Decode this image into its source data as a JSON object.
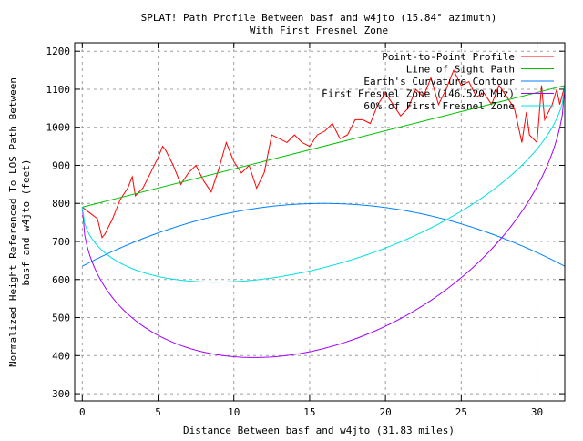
{
  "chart_data": {
    "type": "line",
    "title": "SPLAT! Path Profile Between basf and w4jto (15.84° azimuth)",
    "subtitle": "With First Fresnel Zone",
    "xlabel": "Distance Between basf and w4jto (31.83 miles)",
    "ylabel_line1": "Normalized Height Referenced To LOS Path Between",
    "ylabel_line2": "basf and w4jto (feet)",
    "xlim": [
      -0.5,
      31.83
    ],
    "ylim": [
      281,
      1222
    ],
    "xticks": [
      "0",
      "5",
      "10",
      "15",
      "20",
      "25",
      "30"
    ],
    "xtick_values": [
      0,
      5,
      10,
      15,
      20,
      25,
      30
    ],
    "yticks": [
      "300",
      "400",
      "500",
      "600",
      "700",
      "800",
      "900",
      "1000",
      "1100",
      "1200"
    ],
    "ytick_values": [
      300,
      400,
      500,
      600,
      700,
      800,
      900,
      1000,
      1100,
      1200
    ],
    "grid": true,
    "legend_position": "top-right",
    "series": [
      {
        "name": "Point-to-Point Profile",
        "color": "#ff0000",
        "x": [
          0,
          0.5,
          1,
          1.3,
          1.5,
          2,
          2.5,
          3,
          3.3,
          3.5,
          4,
          4.5,
          5,
          5.3,
          5.5,
          6,
          6.5,
          7,
          7.5,
          8,
          8.5,
          9,
          9.5,
          10,
          10.5,
          11,
          11.5,
          12,
          12.5,
          13,
          13.5,
          14,
          14.5,
          15,
          15.5,
          16,
          16.5,
          17,
          17.5,
          18,
          18.5,
          19,
          19.5,
          20,
          20.5,
          21,
          21.5,
          22,
          22.5,
          23,
          23.5,
          24,
          24.5,
          25,
          25.5,
          26,
          26.5,
          27,
          27.5,
          28,
          28.5,
          29,
          29.3,
          29.5,
          30,
          30.3,
          30.5,
          31,
          31.3,
          31.5,
          31.83
        ],
        "y": [
          790,
          775,
          760,
          710,
          720,
          760,
          810,
          840,
          870,
          820,
          840,
          880,
          920,
          950,
          940,
          900,
          850,
          880,
          900,
          860,
          830,
          890,
          960,
          910,
          880,
          900,
          840,
          880,
          980,
          970,
          960,
          980,
          960,
          950,
          980,
          990,
          1010,
          970,
          980,
          1020,
          1020,
          1010,
          1060,
          1090,
          1060,
          1030,
          1050,
          1100,
          1080,
          1130,
          1060,
          1100,
          1150,
          1110,
          1120,
          1080,
          1090,
          1060,
          1110,
          1080,
          1050,
          960,
          1040,
          980,
          960,
          1110,
          1020,
          1060,
          1100,
          1060,
          1110
        ]
      },
      {
        "name": "Line of Sight Path",
        "color": "#00c000",
        "x": [
          0,
          31.83
        ],
        "y": [
          790,
          1110
        ]
      },
      {
        "name": "Earth's Curvature Contour",
        "color": "#0080ff",
        "formula": "635 + 0.651*x*(31.83-x)",
        "y_start": 635,
        "y_peak": 800,
        "y_end": 635
      },
      {
        "name": "First Fresnel Zone (146.520 MHz)",
        "color": "#a000ff",
        "formula": "LOS(x) - 33.4*sqrt(x*(31.83-x))",
        "y_min": 395
      },
      {
        "name": "60% of First Fresnel Zone",
        "color": "#00e0e0",
        "formula": "LOS(x) - 0.6*33.4*sqrt(x*(31.83-x))",
        "y_min": 595
      }
    ]
  }
}
